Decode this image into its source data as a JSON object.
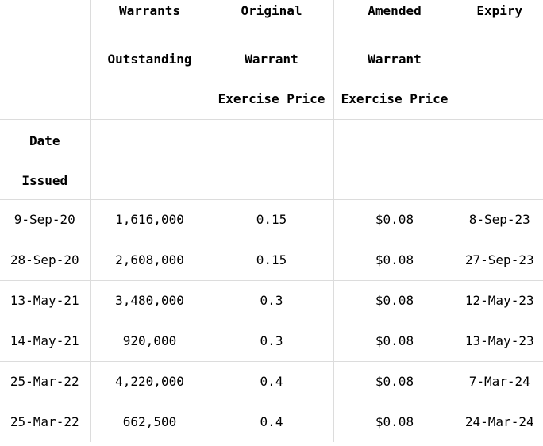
{
  "header": {
    "columns": [
      {
        "lines": [
          "",
          "",
          ""
        ]
      },
      {
        "lines": [
          "Warrants",
          "Outstanding",
          ""
        ]
      },
      {
        "lines": [
          "Original",
          "Warrant",
          "Exercise Price"
        ]
      },
      {
        "lines": [
          "Amended",
          "Warrant",
          "Exercise Price"
        ]
      },
      {
        "lines": [
          "Expiry",
          "",
          ""
        ]
      }
    ]
  },
  "subheader": {
    "lines": [
      "Date",
      "Issued"
    ]
  },
  "rows": [
    {
      "date": "9-Sep-20",
      "outstanding": "1,616,000",
      "original": "0.15",
      "amended": "$0.08",
      "expiry": "8-Sep-23"
    },
    {
      "date": "28-Sep-20",
      "outstanding": "2,608,000",
      "original": "0.15",
      "amended": "$0.08",
      "expiry": "27-Sep-23"
    },
    {
      "date": "13-May-21",
      "outstanding": "3,480,000",
      "original": "0.3",
      "amended": "$0.08",
      "expiry": "12-May-23"
    },
    {
      "date": "14-May-21",
      "outstanding": "920,000",
      "original": "0.3",
      "amended": "$0.08",
      "expiry": "13-May-23"
    },
    {
      "date": "25-Mar-22",
      "outstanding": "4,220,000",
      "original": "0.4",
      "amended": "$0.08",
      "expiry": "7-Mar-24"
    },
    {
      "date": "25-Mar-22",
      "outstanding": "662,500",
      "original": "0.4",
      "amended": "$0.08",
      "expiry": "24-Mar-24"
    }
  ]
}
